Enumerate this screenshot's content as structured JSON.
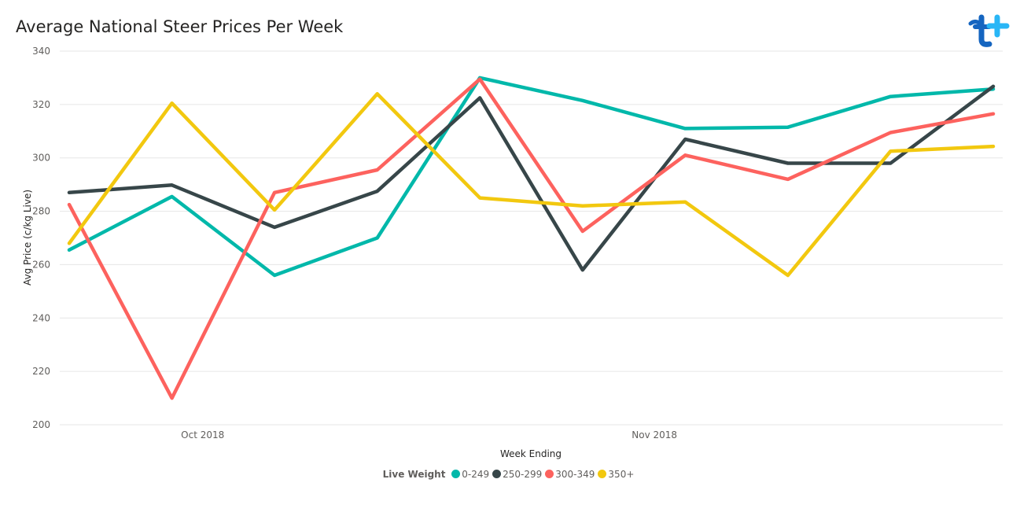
{
  "chart_data": {
    "type": "line",
    "title": "Average National Steer Prices Per Week",
    "xlabel": "Week Ending",
    "ylabel": "Avg Price (c/kg Live)",
    "ylim": [
      200,
      340
    ],
    "yticks": [
      200,
      220,
      240,
      260,
      280,
      300,
      320,
      340
    ],
    "xticks": [
      {
        "label": "Oct 2018",
        "index": 1.3
      },
      {
        "label": "Nov 2018",
        "index": 5.7
      }
    ],
    "grid": true,
    "legend_position": "bottom",
    "legend_title": "Live Weight",
    "series": [
      {
        "name": "0-249",
        "color": "#01B8AA",
        "values": [
          265.5,
          285.5,
          256.0,
          270.0,
          330.0,
          321.5,
          311.0,
          311.5,
          323.0,
          325.8
        ]
      },
      {
        "name": "250-299",
        "color": "#374649",
        "values": [
          287.0,
          289.8,
          274.0,
          287.5,
          322.5,
          258.0,
          307.0,
          298.0,
          298.0,
          326.8
        ]
      },
      {
        "name": "300-349",
        "color": "#FD625E",
        "values": [
          282.5,
          210.0,
          287.0,
          295.5,
          329.5,
          272.5,
          301.0,
          292.0,
          309.5,
          316.5
        ]
      },
      {
        "name": "350+",
        "color": "#F2C80F",
        "values": [
          268.0,
          320.5,
          280.5,
          324.0,
          285.0,
          282.0,
          283.5,
          256.0,
          302.5,
          304.3
        ]
      }
    ]
  },
  "logo": {
    "icon": "t-plus-logo-icon",
    "colors": [
      "#1565c0",
      "#29b6f6"
    ]
  }
}
